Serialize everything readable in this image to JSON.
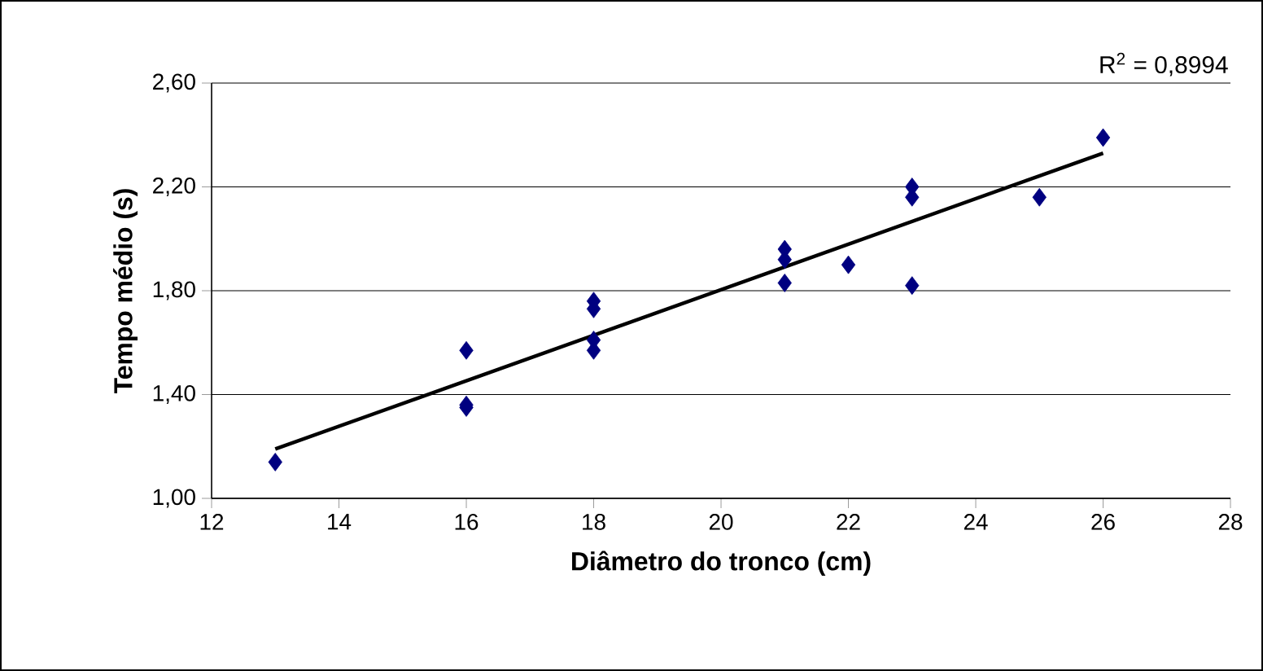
{
  "chart_data": {
    "type": "scatter",
    "xlabel": "Diâmetro do tronco (cm)",
    "ylabel": "Tempo médio (s)",
    "annotations": [
      "R$^{2}$ = 0,8994"
    ],
    "series": [
      {
        "color": "#000080",
        "marker": "diamond",
        "x": [
          13,
          16,
          16,
          16,
          18,
          18,
          18,
          18,
          21,
          21,
          21,
          22,
          23,
          23,
          23,
          25,
          26
        ],
        "values": [
          1.14,
          1.57,
          1.36,
          1.35,
          1.76,
          1.73,
          1.61,
          1.57,
          1.96,
          1.92,
          1.83,
          1.9,
          2.2,
          2.16,
          1.82,
          2.16,
          2.39
        ]
      },
      {
        "type": "line",
        "color": "#000000",
        "marker": "none",
        "x": [
          13,
          26
        ],
        "values": [
          1.19,
          2.33
        ]
      }
    ],
    "xlim": [
      12,
      28
    ],
    "xticks": [
      12,
      14,
      16,
      18,
      20,
      22,
      24,
      26,
      28
    ],
    "ylim": [
      1.0,
      2.6
    ],
    "yticks": [
      {
        "value": 1.0,
        "label": "1,00"
      },
      {
        "value": 1.4,
        "label": "1,40"
      },
      {
        "value": 1.8,
        "label": "1,80"
      },
      {
        "value": 2.2,
        "label": "2,20"
      },
      {
        "value": 2.6,
        "label": "2,60"
      }
    ],
    "grid": "y"
  }
}
